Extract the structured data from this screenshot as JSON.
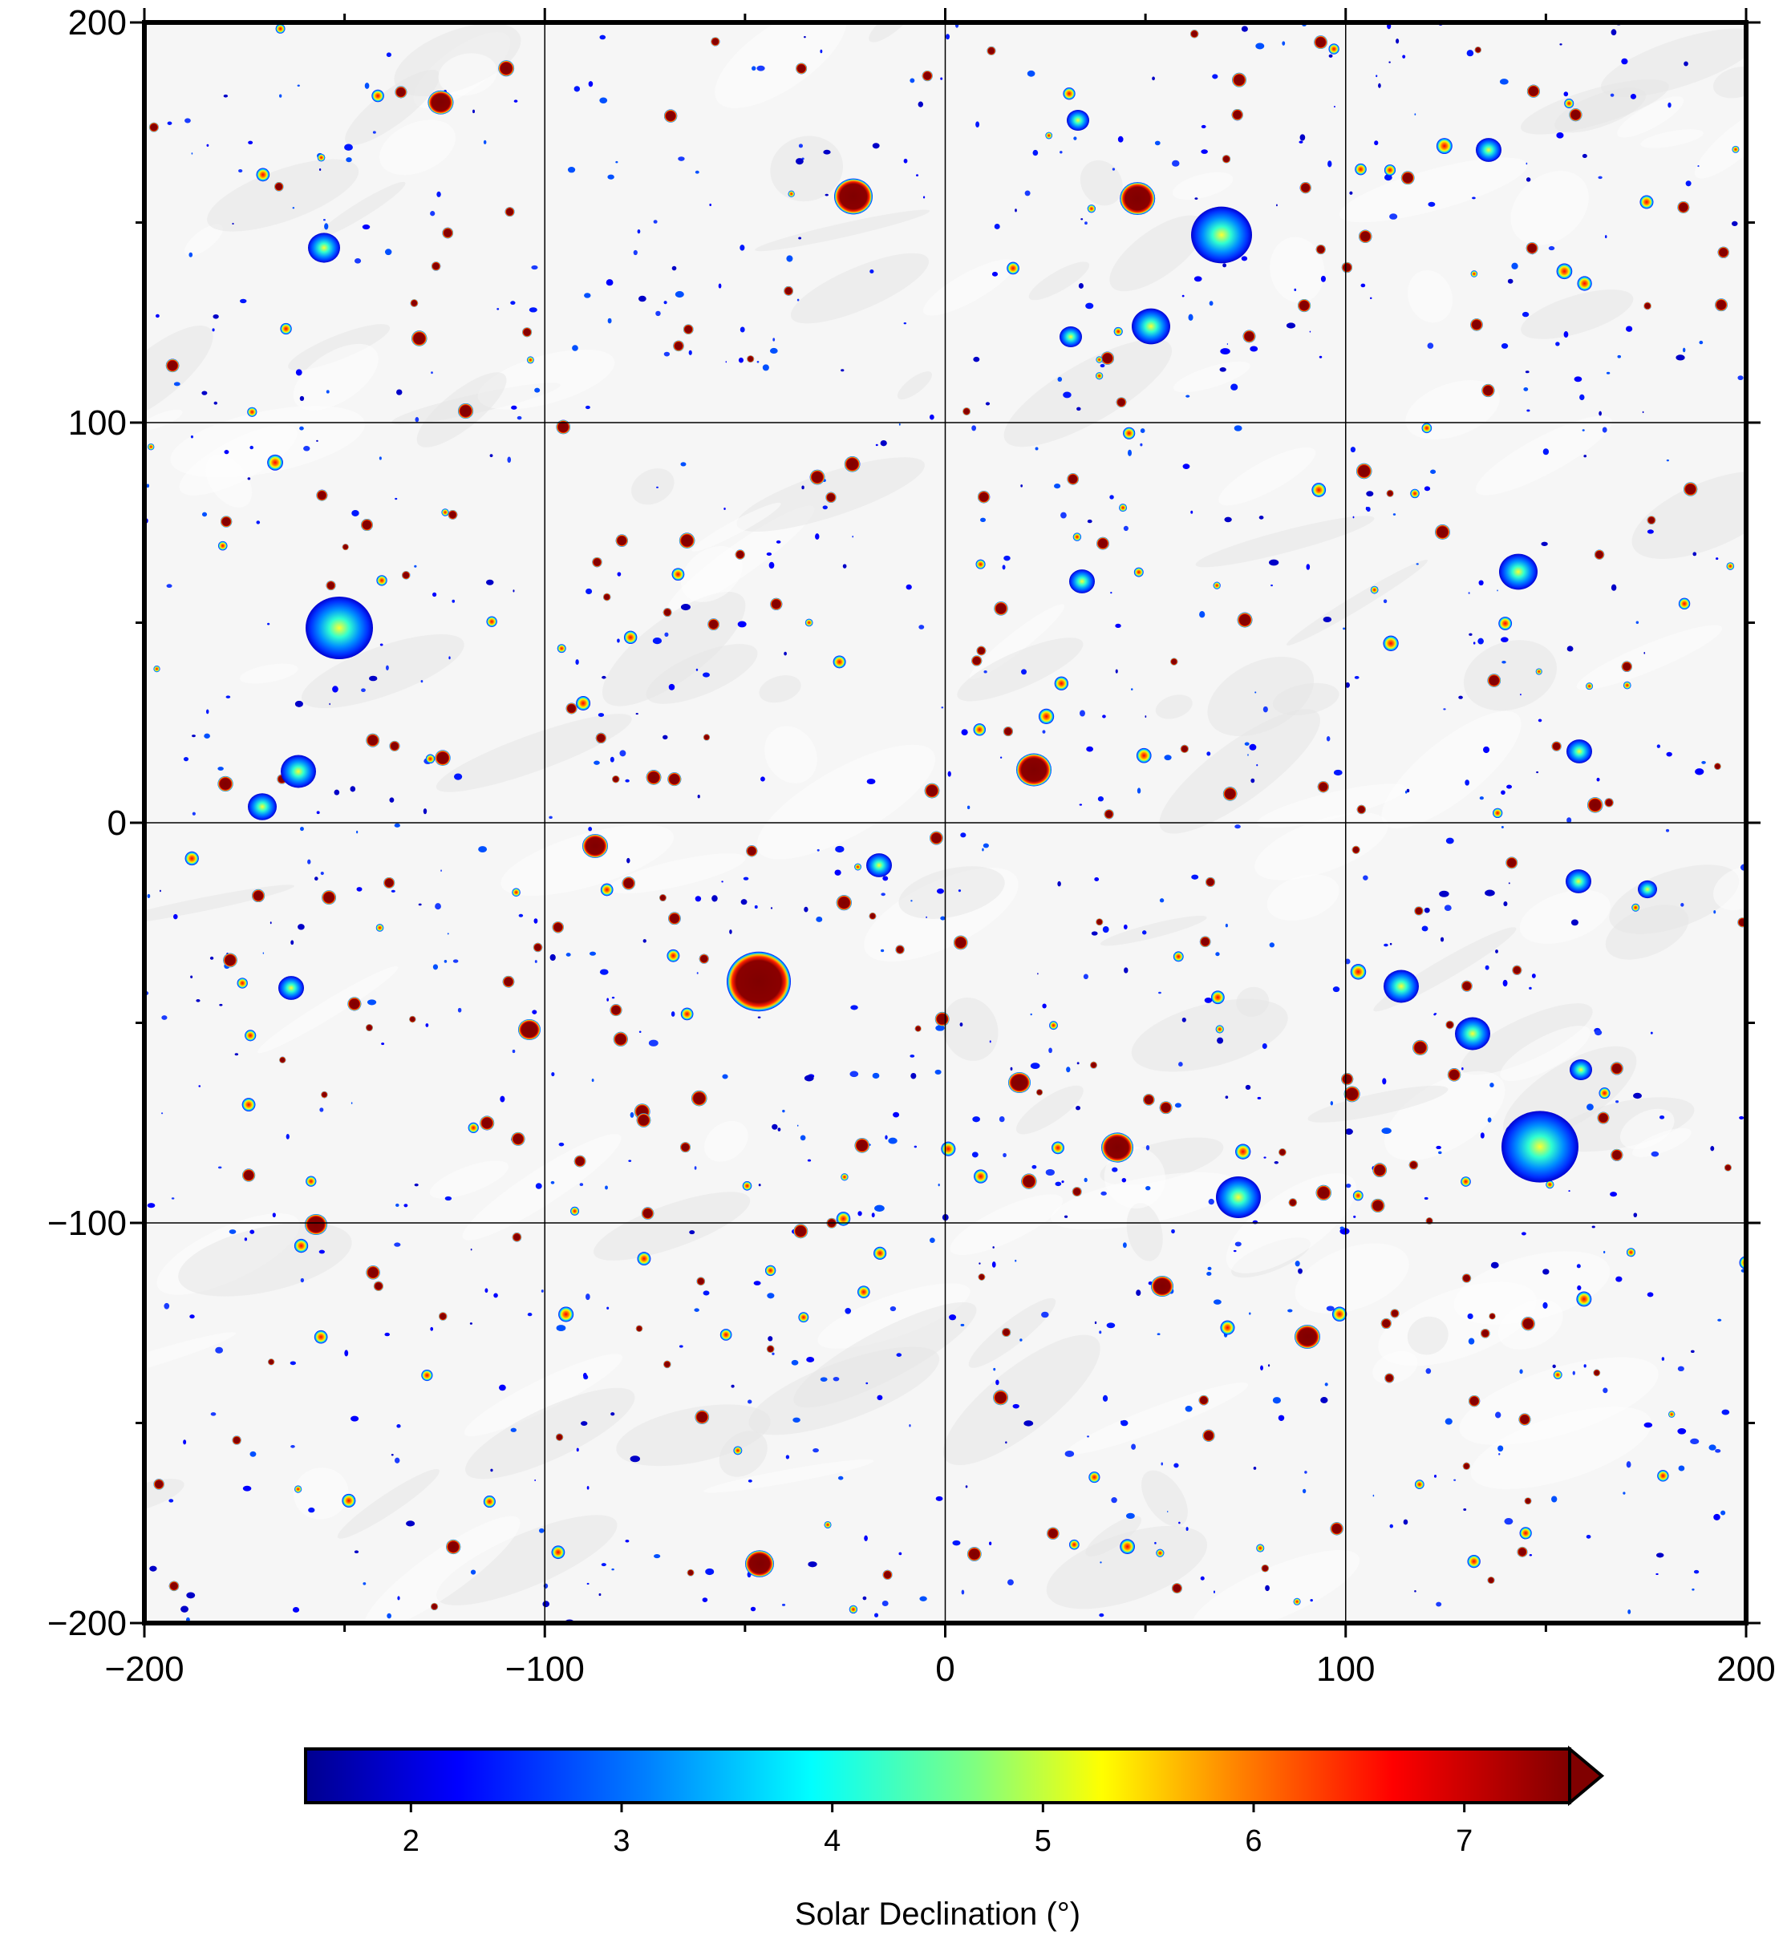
{
  "map": {
    "x_ticks": [
      {
        "value": -200,
        "label": "−200"
      },
      {
        "value": -100,
        "label": "−100"
      },
      {
        "value": 0,
        "label": "0"
      },
      {
        "value": 100,
        "label": "100"
      },
      {
        "value": 200,
        "label": "200"
      }
    ],
    "y_ticks": [
      {
        "value": 200,
        "label": "200"
      },
      {
        "value": 100,
        "label": "100"
      },
      {
        "value": 0,
        "label": "0"
      },
      {
        "value": -100,
        "label": "−100"
      },
      {
        "value": -200,
        "label": "−200"
      }
    ],
    "range": {
      "x": [
        -200,
        200
      ],
      "y": [
        -200,
        200
      ]
    },
    "grid": true,
    "background": "shaded lunar relief",
    "colorbar": {
      "title": "Solar Declination (°)",
      "ticks": [
        {
          "value": 2,
          "label": "2"
        },
        {
          "value": 3,
          "label": "3"
        },
        {
          "value": 4,
          "label": "4"
        },
        {
          "value": 5,
          "label": "5"
        },
        {
          "value": 6,
          "label": "6"
        },
        {
          "value": 7,
          "label": "7"
        }
      ],
      "range": [
        1.5,
        7.5
      ],
      "extends": "max",
      "colors": [
        "#00008f",
        "#0000ff",
        "#0080ff",
        "#00ffff",
        "#80ff80",
        "#ffff00",
        "#ff8000",
        "#ff0000",
        "#800000"
      ]
    }
  }
}
